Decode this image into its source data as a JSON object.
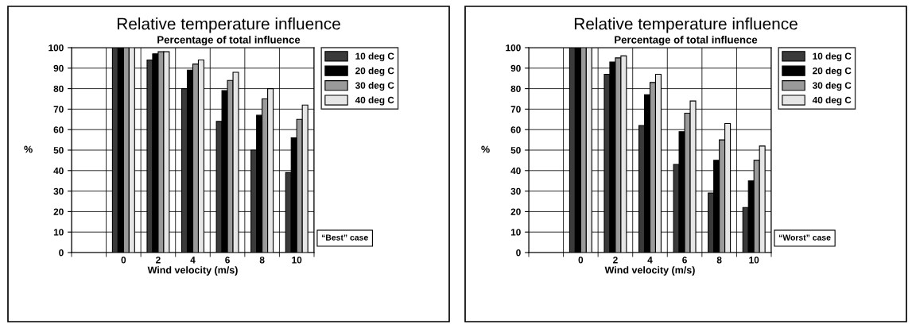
{
  "chart_data": [
    {
      "type": "bar",
      "title": "Relative temperature influence",
      "subtitle": "Percentage of total influence",
      "xlabel": "Wind velocity (m/s)",
      "ylabel": "%",
      "categories": [
        null,
        "0",
        "2",
        "4",
        "6",
        "8",
        "10"
      ],
      "series": [
        {
          "name": "10 deg C",
          "color": "#3a3a3a",
          "values": [
            null,
            100,
            94,
            80,
            64,
            50,
            39
          ]
        },
        {
          "name": "20 deg C",
          "color": "#000000",
          "values": [
            null,
            100,
            97,
            89,
            79,
            67,
            56
          ]
        },
        {
          "name": "30 deg C",
          "color": "#9a9a9a",
          "values": [
            null,
            100,
            98,
            92,
            84,
            75,
            65
          ]
        },
        {
          "name": "40 deg C",
          "color": "#e6e6e6",
          "values": [
            null,
            100,
            98,
            94,
            88,
            80,
            72
          ]
        }
      ],
      "ylim": [
        0,
        100
      ],
      "yticks": [
        0,
        10,
        20,
        30,
        40,
        50,
        60,
        70,
        80,
        90,
        100
      ],
      "grid": true,
      "legend": "right",
      "annotations": [
        "“Best” case"
      ]
    },
    {
      "type": "bar",
      "title": "Relative temperature influence",
      "subtitle": "Percentage of total influence",
      "xlabel": "Wind velocity (m/s)",
      "ylabel": "%",
      "categories": [
        null,
        "0",
        "2",
        "4",
        "6",
        "8",
        "10"
      ],
      "series": [
        {
          "name": "10 deg C",
          "color": "#3a3a3a",
          "values": [
            null,
            100,
            87,
            62,
            43,
            29,
            22
          ]
        },
        {
          "name": "20 deg C",
          "color": "#000000",
          "values": [
            null,
            100,
            93,
            77,
            59,
            45,
            35
          ]
        },
        {
          "name": "30 deg C",
          "color": "#9a9a9a",
          "values": [
            null,
            100,
            95,
            83,
            68,
            55,
            45
          ]
        },
        {
          "name": "40 deg C",
          "color": "#e6e6e6",
          "values": [
            null,
            100,
            96,
            87,
            74,
            63,
            52
          ]
        }
      ],
      "ylim": [
        0,
        100
      ],
      "yticks": [
        0,
        10,
        20,
        30,
        40,
        50,
        60,
        70,
        80,
        90,
        100
      ],
      "grid": true,
      "legend": "right",
      "annotations": [
        "“Worst” case"
      ]
    }
  ]
}
